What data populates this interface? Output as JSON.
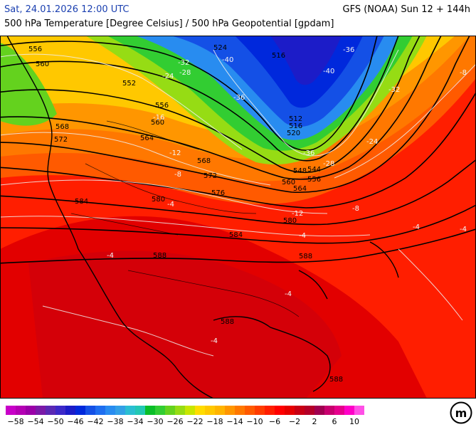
{
  "header": {
    "datetime": "Sat, 24.01.2026 12:00 UTC",
    "model_run": "GFS (NOAA) Sun 12 + 144h",
    "parameter": "500 hPa Temperature [Degree Celsius] / 500 hPa Geopotential [gpdam]"
  },
  "geopotential_labels": [
    "524",
    "516",
    "560",
    "556",
    "552",
    "556",
    "560",
    "568",
    "572",
    "564",
    "568",
    "572",
    "576",
    "580",
    "584",
    "588",
    "512",
    "516",
    "520",
    "548",
    "544",
    "556",
    "560",
    "564",
    "580",
    "584",
    "588",
    "588",
    "588"
  ],
  "temperature_labels": [
    "-32",
    "-36",
    "-40",
    "-28",
    "-24",
    "-36",
    "-16",
    "-12",
    "-8",
    "-4",
    "-40",
    "-36",
    "-32",
    "-28",
    "-24",
    "-12",
    "-8",
    "-4",
    "-4",
    "-4",
    "-4",
    "-4",
    "-8",
    "-4"
  ],
  "colorbar": {
    "colors": [
      "#c800c8",
      "#b400b4",
      "#9a00a8",
      "#7a1aa8",
      "#5a28b4",
      "#3c28c8",
      "#1c1cc8",
      "#0028dc",
      "#1450e6",
      "#1e6ef0",
      "#288cf0",
      "#32a0e6",
      "#2abed2",
      "#22c8b4",
      "#0abe28",
      "#32cd32",
      "#64d21e",
      "#96dc14",
      "#c8e600",
      "#ffdc00",
      "#ffc800",
      "#ffb400",
      "#ff9600",
      "#ff7800",
      "#ff5a00",
      "#ff3c00",
      "#ff1e00",
      "#ff0000",
      "#e60000",
      "#c80014",
      "#b40028",
      "#a00050",
      "#c8006e",
      "#e6008c",
      "#ff00c8",
      "#ff50e6"
    ],
    "tick_labels": [
      "−58",
      "−54",
      "−50",
      "−46",
      "−42",
      "−38",
      "−34",
      "−30",
      "−26",
      "−22",
      "−18",
      "−14",
      "−10",
      "−6",
      "−2",
      "2",
      "6",
      "10"
    ]
  },
  "logo_text": "m"
}
